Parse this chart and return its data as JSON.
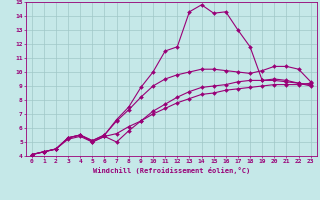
{
  "title": "",
  "xlabel": "Windchill (Refroidissement éolien,°C)",
  "ylabel": "",
  "xlim": [
    -0.5,
    23.5
  ],
  "ylim": [
    4,
    15
  ],
  "xtick_labels": [
    "0",
    "1",
    "2",
    "3",
    "4",
    "5",
    "6",
    "7",
    "8",
    "9",
    "10",
    "11",
    "12",
    "13",
    "14",
    "15",
    "16",
    "17",
    "18",
    "19",
    "20",
    "21",
    "22",
    "23"
  ],
  "xtick_vals": [
    0,
    1,
    2,
    3,
    4,
    5,
    6,
    7,
    8,
    9,
    10,
    11,
    12,
    13,
    14,
    15,
    16,
    17,
    18,
    19,
    20,
    21,
    22,
    23
  ],
  "ytick_vals": [
    4,
    5,
    6,
    7,
    8,
    9,
    10,
    11,
    12,
    13,
    14,
    15
  ],
  "background_color": "#c5e8e8",
  "grid_color": "#a0c8c8",
  "line_color": "#990077",
  "marker": "D",
  "marker_size": 2,
  "linewidth": 0.8,
  "lines": [
    {
      "x": [
        0,
        1,
        2,
        3,
        4,
        5,
        6,
        7,
        8,
        9,
        10,
        11,
        12,
        13,
        14,
        15,
        16,
        17,
        18,
        19,
        20,
        21,
        22,
        23
      ],
      "y": [
        4.1,
        4.3,
        4.5,
        5.3,
        5.5,
        5.1,
        5.5,
        6.6,
        7.5,
        8.9,
        10.0,
        11.5,
        11.8,
        14.3,
        14.8,
        14.2,
        14.3,
        13.0,
        11.8,
        9.4,
        9.4,
        9.3,
        9.2,
        9.1
      ]
    },
    {
      "x": [
        0,
        1,
        2,
        3,
        4,
        5,
        6,
        7,
        8,
        9,
        10,
        11,
        12,
        13,
        14,
        15,
        16,
        17,
        18,
        19,
        20,
        21,
        22,
        23
      ],
      "y": [
        4.1,
        4.3,
        4.5,
        5.3,
        5.5,
        5.1,
        5.5,
        6.5,
        7.3,
        8.2,
        9.0,
        9.5,
        9.8,
        10.0,
        10.2,
        10.2,
        10.1,
        10.0,
        9.9,
        10.1,
        10.4,
        10.4,
        10.2,
        9.3
      ]
    },
    {
      "x": [
        0,
        1,
        2,
        3,
        4,
        5,
        6,
        7,
        8,
        9,
        10,
        11,
        12,
        13,
        14,
        15,
        16,
        17,
        18,
        19,
        20,
        21,
        22,
        23
      ],
      "y": [
        4.1,
        4.3,
        4.5,
        5.3,
        5.5,
        5.0,
        5.4,
        5.0,
        5.8,
        6.5,
        7.2,
        7.7,
        8.2,
        8.6,
        8.9,
        9.0,
        9.1,
        9.3,
        9.4,
        9.4,
        9.5,
        9.4,
        9.2,
        9.0
      ]
    },
    {
      "x": [
        0,
        1,
        2,
        3,
        4,
        5,
        6,
        7,
        8,
        9,
        10,
        11,
        12,
        13,
        14,
        15,
        16,
        17,
        18,
        19,
        20,
        21,
        22,
        23
      ],
      "y": [
        4.1,
        4.3,
        4.5,
        5.2,
        5.4,
        5.0,
        5.4,
        5.6,
        6.1,
        6.5,
        7.0,
        7.4,
        7.8,
        8.1,
        8.4,
        8.5,
        8.7,
        8.8,
        8.9,
        9.0,
        9.1,
        9.1,
        9.1,
        9.2
      ]
    }
  ]
}
